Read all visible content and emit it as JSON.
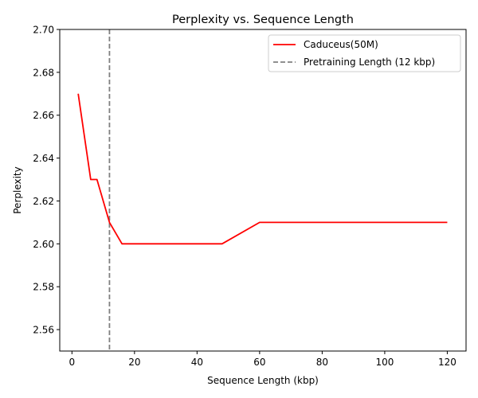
{
  "chart_data": {
    "type": "line",
    "title": "Perplexity vs. Sequence Length",
    "xlabel": "Sequence Length (kbp)",
    "ylabel": "Perplexity",
    "xlim": [
      -3.9,
      126
    ],
    "ylim": [
      2.55,
      2.7
    ],
    "x_ticks": [
      0,
      20,
      40,
      60,
      80,
      100,
      120
    ],
    "y_ticks": [
      2.56,
      2.58,
      2.6,
      2.62,
      2.64,
      2.66,
      2.68,
      2.7
    ],
    "y_tick_labels": [
      "2.56",
      "2.58",
      "2.60",
      "2.62",
      "2.64",
      "2.66",
      "2.68",
      "2.70"
    ],
    "grid": false,
    "legend_position": "top-right",
    "series": [
      {
        "name": "Caduceus(50M)",
        "color": "#ff0000",
        "style": "solid",
        "x": [
          2,
          6,
          8,
          12,
          16,
          24,
          32,
          40,
          48,
          60,
          72,
          84,
          96,
          108,
          120
        ],
        "y": [
          2.67,
          2.63,
          2.63,
          2.61,
          2.6,
          2.6,
          2.6,
          2.6,
          2.6,
          2.61,
          2.61,
          2.61,
          2.61,
          2.61,
          2.61
        ]
      }
    ],
    "reference_lines": [
      {
        "orientation": "vertical",
        "x": 12,
        "name": "Pretraining Length (12 kbp)",
        "color": "#808080",
        "style": "dashed"
      }
    ]
  }
}
